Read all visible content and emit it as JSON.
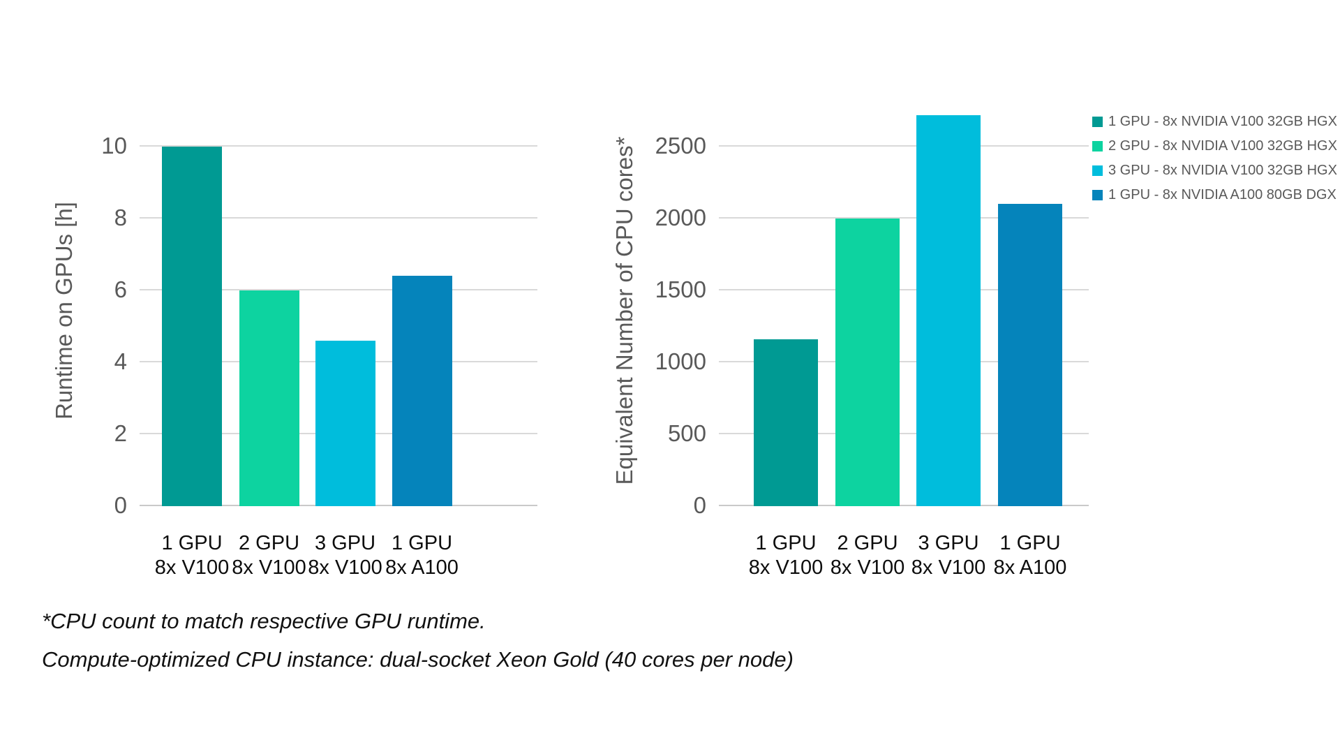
{
  "chart_data": [
    {
      "type": "bar",
      "title": "",
      "ylabel": "Runtime on GPUs [h]",
      "xlabel": "",
      "categories": [
        [
          "1 GPU",
          "8x V100"
        ],
        [
          "2 GPU",
          "8x V100"
        ],
        [
          "3 GPU",
          "8x V100"
        ],
        [
          "1 GPU",
          "8x A100"
        ]
      ],
      "values": [
        10,
        6,
        4.6,
        6.4
      ],
      "yticks": [
        0,
        2,
        4,
        6,
        8,
        10
      ],
      "ylim": [
        0,
        10.9
      ],
      "grid": true,
      "bar_colors": [
        "#009A93",
        "#0DD3A0",
        "#00BDDC",
        "#0584BB"
      ]
    },
    {
      "type": "bar",
      "title": "",
      "ylabel": "Equivalent Number of CPU cores*",
      "xlabel": "",
      "categories": [
        [
          "1 GPU",
          "8x V100"
        ],
        [
          "2 GPU",
          "8x V100"
        ],
        [
          "3 GPU",
          "8x V100"
        ],
        [
          "1 GPU",
          "8x A100"
        ]
      ],
      "values": [
        1160,
        2000,
        2720,
        2100
      ],
      "yticks": [
        0,
        500,
        1000,
        1500,
        2000,
        2500
      ],
      "ylim": [
        0,
        2725
      ],
      "grid": true,
      "bar_colors": [
        "#009A93",
        "#0DD3A0",
        "#00BDDC",
        "#0584BB"
      ]
    }
  ],
  "legend": {
    "position": "top-right",
    "items": [
      {
        "label": "1 GPU - 8x NVIDIA V100 32GB HGX",
        "color": "#009A93"
      },
      {
        "label": "2 GPU - 8x NVIDIA V100 32GB HGX",
        "color": "#0DD3A0"
      },
      {
        "label": "3 GPU - 8x NVIDIA V100 32GB HGX",
        "color": "#00BDDC"
      },
      {
        "label": "1 GPU - 8x NVIDIA A100 80GB DGX",
        "color": "#0584BB"
      }
    ]
  },
  "footnotes": {
    "line1": "*CPU count to match respective GPU runtime.",
    "line2": "Compute-optimized CPU instance: dual-socket Xeon Gold (40 cores per node)"
  }
}
